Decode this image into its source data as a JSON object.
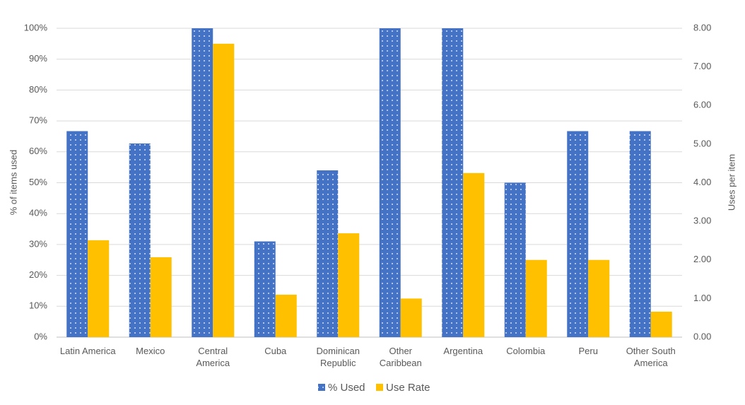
{
  "chart_data": {
    "type": "bar",
    "categories": [
      "Latin America",
      "Mexico",
      "Central America",
      "Cuba",
      "Dominican Republic",
      "Other Caribbean",
      "Argentina",
      "Colombia",
      "Peru",
      "Other South America"
    ],
    "series": [
      {
        "name": "% Used",
        "color": "#4472c4",
        "values": [
          66.7,
          62.7,
          100,
          31,
          54,
          100,
          100,
          50,
          66.7,
          66.7
        ]
      },
      {
        "name": "Use Rate",
        "color": "#ffc000",
        "axis": "y2",
        "values": [
          2.51,
          2.07,
          7.6,
          1.1,
          2.69,
          1.0,
          4.25,
          2.0,
          2.0,
          0.66
        ]
      }
    ],
    "y_label": "% of items used",
    "y2_label": "Uses per item",
    "ylim": [
      0,
      100
    ],
    "yticks": [
      {
        "value": 0,
        "label": "0%"
      },
      {
        "value": 10,
        "label": "10%"
      },
      {
        "value": 20,
        "label": "20%"
      },
      {
        "value": 30,
        "label": "30%"
      },
      {
        "value": 40,
        "label": "40%"
      },
      {
        "value": 50,
        "label": "50%"
      },
      {
        "value": 60,
        "label": "60%"
      },
      {
        "value": 70,
        "label": "70%"
      },
      {
        "value": 80,
        "label": "80%"
      },
      {
        "value": 90,
        "label": "90%"
      },
      {
        "value": 100,
        "label": "100%"
      }
    ],
    "y2lim": [
      0,
      8
    ],
    "y2ticks": [
      {
        "value": 0,
        "label": "0.00"
      },
      {
        "value": 1,
        "label": "1.00"
      },
      {
        "value": 2,
        "label": "2.00"
      },
      {
        "value": 3,
        "label": "3.00"
      },
      {
        "value": 4,
        "label": "4.00"
      },
      {
        "value": 5,
        "label": "5.00"
      },
      {
        "value": 6,
        "label": "6.00"
      },
      {
        "value": 7,
        "label": "7.00"
      },
      {
        "value": 8,
        "label": "8.00"
      }
    ],
    "grid": true,
    "legend": "bottom"
  }
}
